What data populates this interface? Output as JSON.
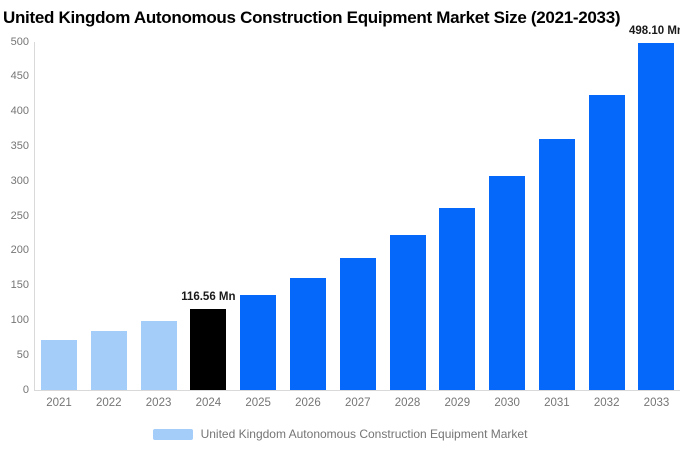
{
  "title": "United Kingdom Autonomous Construction Equipment Market Size (2021-2033)",
  "legend": {
    "label": "United Kingdom Autonomous Construction Equipment Market",
    "marker_color": "#A4CDFA"
  },
  "colors": {
    "historical_bar": "#A4CDFA",
    "highlight_bar": "#000000",
    "forecast_bar": "#0568FB",
    "axis_line": "#D9D9D9",
    "tick_text": "#757575",
    "title_text": "#000000",
    "data_label_text": "#1A1A1A"
  },
  "chart_data": {
    "type": "bar",
    "title": "United Kingdom Autonomous Construction Equipment Market Size (2021-2033)",
    "categories": [
      "2021",
      "2022",
      "2023",
      "2024",
      "2025",
      "2026",
      "2027",
      "2028",
      "2029",
      "2030",
      "2031",
      "2032",
      "2033"
    ],
    "values": [
      71.8,
      84.4,
      99.2,
      116.56,
      137.0,
      161.0,
      189.1,
      222.2,
      261.2,
      306.9,
      360.6,
      423.8,
      498.1
    ],
    "data_labels": [
      "",
      "",
      "",
      "116.56 Mn",
      "",
      "",
      "",
      "",
      "",
      "",
      "",
      "",
      "498.10 Mn"
    ],
    "bar_segments": [
      "historical",
      "historical",
      "historical",
      "highlight",
      "forecast",
      "forecast",
      "forecast",
      "forecast",
      "forecast",
      "forecast",
      "forecast",
      "forecast",
      "forecast"
    ],
    "unit": "Mn",
    "xlabel": "",
    "ylabel": "",
    "ylim": [
      0,
      500
    ],
    "yticks": [
      0,
      50,
      100,
      150,
      200,
      250,
      300,
      350,
      400,
      450,
      500
    ],
    "grid": false,
    "legend_position": "bottom",
    "legend_entries": [
      "United Kingdom Autonomous Construction Equipment Market"
    ]
  }
}
